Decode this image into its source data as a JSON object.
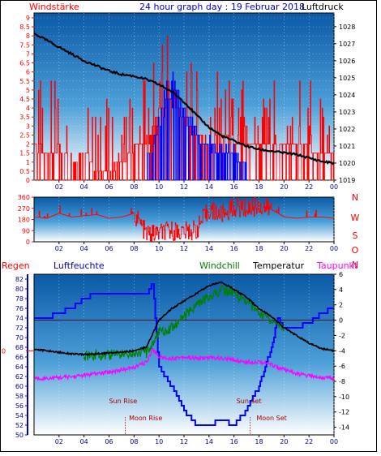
{
  "header": {
    "left": "Windstärke",
    "center": "24 hour graph day : 19 Februar 2018",
    "right": "Luftdruck"
  },
  "bottom_legend": {
    "regen": "Regen",
    "luftfeuchte": "Luftfeuchte",
    "windchill": "Windchill",
    "temperatur": "Temperatur",
    "taupunkt": "Taupunkt"
  },
  "direction_labels": [
    "N",
    "W",
    "S",
    "O",
    "N"
  ],
  "events": {
    "sun_rise": "Sun Rise",
    "moon_rise": "Moon Rise",
    "sun_set": "Sun Set",
    "moon_set": "Moon Set"
  },
  "colors": {
    "wind": "#ff0000",
    "gust": "#0000ff",
    "pressure": "#000000",
    "humidity": "#0000ff",
    "windchill": "#008000",
    "temperature": "#000000",
    "dewpoint": "#ff00ff",
    "rain_axis": "#ff0000"
  },
  "chart_data": [
    {
      "type": "line",
      "title": "24 hour graph day : 19 Februar 2018",
      "x_ticks": [
        "02",
        "04",
        "06",
        "08",
        "10",
        "12",
        "14",
        "16",
        "18",
        "20",
        "22",
        "00"
      ],
      "xlim_hours": [
        0,
        24
      ],
      "left_axis": {
        "label": "Windstärke",
        "ticks": [
          "0",
          "0.5",
          "1",
          "1.5",
          "2",
          "2.5",
          "3",
          "3.5",
          "4",
          "4.5",
          "5",
          "5.5",
          "6",
          "6.5",
          "7",
          "7.5",
          "8",
          "8.5",
          "9"
        ],
        "ylim": [
          0,
          9
        ]
      },
      "right_axis": {
        "label": "Luftdruck",
        "ticks": [
          "1019",
          "1020",
          "1021",
          "1022",
          "1023",
          "1024",
          "1025",
          "1026",
          "1027",
          "1028"
        ],
        "ylim": [
          1019,
          1028.8
        ]
      },
      "series": [
        {
          "name": "Luftdruck",
          "axis": "right",
          "x": [
            0,
            1,
            2,
            3,
            4,
            5,
            6,
            7,
            8,
            9,
            10,
            11,
            12,
            13,
            14,
            15,
            16,
            17,
            18,
            19,
            20,
            21,
            22,
            23,
            24
          ],
          "values": [
            1027.6,
            1027.2,
            1026.8,
            1026.4,
            1026.0,
            1025.7,
            1025.4,
            1025.2,
            1025.1,
            1024.9,
            1024.6,
            1024.2,
            1023.6,
            1022.8,
            1022.1,
            1021.6,
            1021.3,
            1021.0,
            1020.8,
            1020.7,
            1020.6,
            1020.5,
            1020.3,
            1020.1,
            1020.0
          ]
        },
        {
          "name": "Windstärke",
          "axis": "left",
          "x": [
            0,
            1,
            2,
            3,
            4,
            5,
            6,
            7,
            8,
            9,
            10,
            11,
            12,
            13,
            14,
            15,
            16,
            17,
            18,
            19,
            20,
            21,
            22,
            23,
            24
          ],
          "values": [
            1.8,
            1.5,
            1.8,
            1.0,
            1.5,
            0.5,
            0.5,
            1.0,
            1.8,
            1.8,
            4.0,
            4.5,
            3.5,
            2.5,
            2.0,
            2.5,
            2.0,
            2.0,
            1.8,
            1.8,
            1.8,
            1.8,
            1.8,
            1.5,
            1.5
          ]
        },
        {
          "name": "Windböen",
          "axis": "left",
          "x": [
            9,
            9.5,
            10,
            10.5,
            11,
            11.5,
            12,
            12.5,
            13,
            13.5,
            14,
            14.5,
            15,
            15.5,
            16,
            16.5,
            17
          ],
          "values": [
            1.5,
            2.0,
            3.0,
            4.5,
            5.0,
            4.5,
            3.5,
            3.0,
            2.5,
            2.0,
            2.0,
            1.5,
            1.8,
            1.5,
            1.5,
            1.0,
            1.0
          ]
        }
      ]
    },
    {
      "type": "line",
      "x_ticks": [
        "02",
        "04",
        "06",
        "08",
        "10",
        "12",
        "14",
        "16",
        "18",
        "20",
        "22",
        "00"
      ],
      "left_axis": {
        "ticks": [
          "0",
          "90",
          "180",
          "270",
          "360"
        ],
        "ylim": [
          0,
          360
        ]
      },
      "right_axis": {
        "labels": [
          "N",
          "W",
          "S",
          "O",
          "N"
        ]
      },
      "series": [
        {
          "name": "Windrichtung",
          "x": [
            0,
            1,
            2,
            3,
            4,
            5,
            6,
            7,
            8,
            9,
            10,
            11,
            12,
            13,
            14,
            15,
            16,
            17,
            18,
            19,
            20,
            21,
            22,
            23,
            24
          ],
          "values": [
            200,
            190,
            230,
            200,
            210,
            220,
            190,
            200,
            230,
            60,
            70,
            90,
            80,
            100,
            260,
            220,
            280,
            270,
            290,
            260,
            200,
            190,
            200,
            200,
            190
          ]
        }
      ]
    },
    {
      "type": "line",
      "x_ticks": [
        "02",
        "04",
        "06",
        "08",
        "10",
        "12",
        "14",
        "16",
        "18",
        "20",
        "22",
        "00"
      ],
      "left_axis": {
        "label": "Luftfeuchte",
        "ticks": [
          "50",
          "52",
          "54",
          "56",
          "58",
          "60",
          "62",
          "64",
          "66",
          "68",
          "70",
          "72",
          "74",
          "76",
          "78",
          "80",
          "82"
        ],
        "ylim": [
          50,
          83
        ]
      },
      "right_axis": {
        "label": "Temperatur",
        "ticks": [
          "-14",
          "-12",
          "-10",
          "-8",
          "-6",
          "-4",
          "-2",
          "0",
          "2",
          "4",
          "6"
        ],
        "ylim": [
          -15,
          6
        ]
      },
      "rain_label_value": "0",
      "series": [
        {
          "name": "Luftfeuchte",
          "axis": "left",
          "x": [
            0,
            1,
            2,
            3,
            4,
            5,
            6,
            7,
            8,
            9,
            9.5,
            10,
            11,
            12,
            13,
            14,
            15,
            16,
            17,
            18,
            19,
            19.5,
            20,
            21,
            22,
            23,
            24
          ],
          "values": [
            74,
            74,
            75,
            76,
            78,
            79,
            79,
            79,
            79,
            79,
            81,
            64,
            60,
            55,
            52,
            52,
            53,
            52,
            55,
            60,
            68,
            74,
            72,
            72,
            73,
            75,
            76
          ]
        },
        {
          "name": "Temperatur",
          "axis": "right",
          "x": [
            0,
            1,
            2,
            3,
            4,
            5,
            6,
            7,
            8,
            9,
            10,
            11,
            12,
            13,
            14,
            15,
            16,
            17,
            18,
            19,
            20,
            21,
            22,
            23,
            24
          ],
          "values": [
            -3.8,
            -4.0,
            -4.2,
            -4.4,
            -4.5,
            -4.4,
            -4.3,
            -4.2,
            -4.0,
            -3.5,
            0.0,
            1.5,
            2.5,
            3.5,
            4.5,
            5.0,
            4.0,
            3.0,
            1.5,
            0.5,
            -1.0,
            -2.0,
            -3.0,
            -3.7,
            -4.0
          ]
        },
        {
          "name": "Windchill",
          "axis": "right",
          "x": [
            4,
            5,
            6,
            7,
            8,
            9,
            10,
            11,
            12,
            13,
            14,
            15,
            16,
            17,
            18,
            19,
            20
          ],
          "values": [
            -4.6,
            -4.6,
            -4.5,
            -4.4,
            -4.2,
            -4.3,
            -1.5,
            -1.0,
            0.5,
            2.0,
            3.0,
            4.0,
            3.5,
            2.5,
            1.0,
            0.0,
            -1.0
          ]
        },
        {
          "name": "Taupunkt",
          "axis": "right",
          "x": [
            0,
            1,
            2,
            3,
            4,
            5,
            6,
            7,
            8,
            9,
            9.5,
            10,
            11,
            12,
            13,
            14,
            15,
            16,
            17,
            18,
            19,
            20,
            21,
            22,
            23,
            24
          ],
          "values": [
            -7.6,
            -7.6,
            -7.5,
            -7.4,
            -7.2,
            -7.0,
            -6.8,
            -6.5,
            -6.2,
            -5.5,
            -3.8,
            -4.8,
            -5.0,
            -4.8,
            -5.0,
            -4.9,
            -5.0,
            -5.2,
            -5.5,
            -5.4,
            -5.8,
            -6.5,
            -7.0,
            -7.3,
            -7.5,
            -7.6
          ]
        }
      ]
    }
  ]
}
